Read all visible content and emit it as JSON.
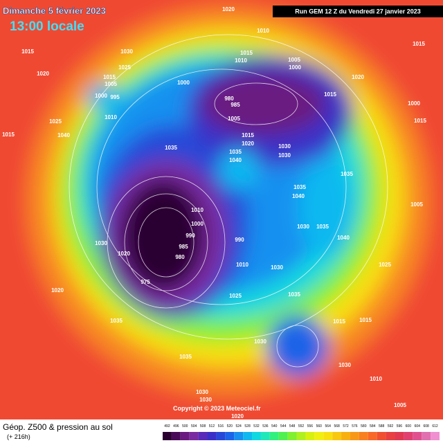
{
  "header": {
    "date": "Dimanche 5 février 2023",
    "time": "13:00 locale",
    "run": "Run GEM 12 Z du Vendredi 27 janvier 2023"
  },
  "copyright": "Copyright © 2023 Meteociel.fr",
  "footer": {
    "title": "Géop. Z500 & pression au sol",
    "lead": "(+ 216h)"
  },
  "legend": {
    "labels": [
      "492",
      "496",
      "500",
      "504",
      "508",
      "512",
      "516",
      "520",
      "524",
      "528",
      "532",
      "536",
      "540",
      "544",
      "548",
      "552",
      "556",
      "560",
      "564",
      "568",
      "572",
      "576",
      "580",
      "584",
      "588",
      "592",
      "596",
      "600",
      "604",
      "608",
      "612"
    ],
    "colors": [
      "#2a0030",
      "#4a0a5a",
      "#6a1a80",
      "#7a2aa0",
      "#5a2ab8",
      "#3a30c8",
      "#2848d8",
      "#1c64e8",
      "#1890f0",
      "#10b8f0",
      "#10d8e0",
      "#20e8b8",
      "#30f080",
      "#50f050",
      "#80f030",
      "#b0f020",
      "#d8f010",
      "#f0f010",
      "#f8e010",
      "#f8c810",
      "#f8b010",
      "#f89818",
      "#f88020",
      "#f86828",
      "#f05030",
      "#e84040",
      "#e03850",
      "#e04070",
      "#e05090",
      "#e070b0",
      "#f090d0"
    ]
  },
  "isobars": [
    "1020",
    "1010",
    "1015",
    "1030",
    "1025",
    "1020",
    "1015",
    "1005",
    "1000",
    "995",
    "1000",
    "1015",
    "1010",
    "1005",
    "1000",
    "1020",
    "1015",
    "980",
    "985",
    "1005",
    "1010",
    "1025",
    "1040",
    "1015",
    "1015",
    "1020",
    "1030",
    "1030",
    "1035",
    "1035",
    "1040",
    "1035",
    "1035",
    "1040",
    "1010",
    "1000",
    "1030",
    "1035",
    "990",
    "985",
    "990",
    "1030",
    "1020",
    "980",
    "1010",
    "1030",
    "1025",
    "1035",
    "1025",
    "975",
    "1020",
    "1035",
    "1015",
    "1030",
    "1035",
    "1010",
    "1030",
    "1030",
    "1005",
    "1020",
    "1015",
    "1000",
    "1015",
    "1030",
    "1040",
    "1005",
    "1015"
  ]
}
